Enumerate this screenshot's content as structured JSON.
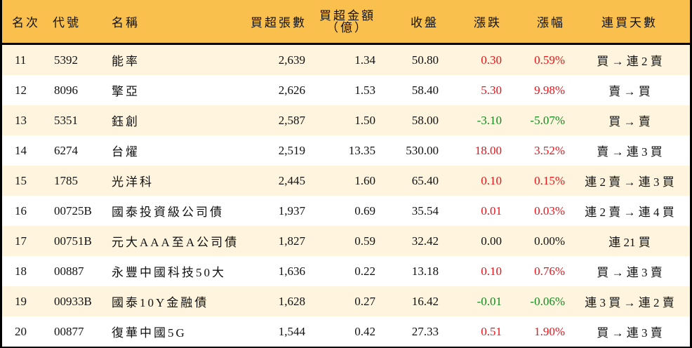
{
  "colors": {
    "header_bg": "#F9C04D",
    "row_alt_bg": "#FFF5DE",
    "row_plain_bg": "#FFFFFF",
    "up": "#E8141A",
    "down": "#12891F",
    "border": "#000000"
  },
  "table": {
    "headers": {
      "rank": "名次",
      "code": "代號",
      "name": "名稱",
      "net_buy_lots": "買超張數",
      "net_buy_amount_line1": "買超金額",
      "net_buy_amount_line2": "（億）",
      "close": "收盤",
      "change": "漲跌",
      "change_pct": "漲幅",
      "streak": "連買天數"
    },
    "rows": [
      {
        "rank": "11",
        "code": "5392",
        "name": "能率",
        "lots": "2,639",
        "amount": "1.34",
        "close": "50.80",
        "change": "0.30",
        "pct": "0.59%",
        "dir": "up",
        "streak": "買 → 連 2 賣"
      },
      {
        "rank": "12",
        "code": "8096",
        "name": "擎亞",
        "lots": "2,626",
        "amount": "1.53",
        "close": "58.40",
        "change": "5.30",
        "pct": "9.98%",
        "dir": "up",
        "streak": "賣 → 買"
      },
      {
        "rank": "13",
        "code": "5351",
        "name": "鈺創",
        "lots": "2,587",
        "amount": "1.50",
        "close": "58.00",
        "change": "-3.10",
        "pct": "-5.07%",
        "dir": "down",
        "streak": "買 → 賣"
      },
      {
        "rank": "14",
        "code": "6274",
        "name": "台燿",
        "lots": "2,519",
        "amount": "13.35",
        "close": "530.00",
        "change": "18.00",
        "pct": "3.52%",
        "dir": "up",
        "streak": "賣 → 連 3 買"
      },
      {
        "rank": "15",
        "code": "1785",
        "name": "光洋科",
        "lots": "2,445",
        "amount": "1.60",
        "close": "65.40",
        "change": "0.10",
        "pct": "0.15%",
        "dir": "up",
        "streak": "連 2 賣 → 連 3 買"
      },
      {
        "rank": "16",
        "code": "00725B",
        "name": "國泰投資級公司債",
        "lots": "1,937",
        "amount": "0.69",
        "close": "35.54",
        "change": "0.01",
        "pct": "0.03%",
        "dir": "up",
        "streak": "連 2 賣 → 連 4 買"
      },
      {
        "rank": "17",
        "code": "00751B",
        "name": "元大AAA至A公司債",
        "lots": "1,827",
        "amount": "0.59",
        "close": "32.42",
        "change": "0.00",
        "pct": "0.00%",
        "dir": "flat",
        "streak": "連 21 買"
      },
      {
        "rank": "18",
        "code": "00887",
        "name": "永豐中國科技50大",
        "lots": "1,636",
        "amount": "0.22",
        "close": "13.18",
        "change": "0.10",
        "pct": "0.76%",
        "dir": "up",
        "streak": "買 → 連 3 賣"
      },
      {
        "rank": "19",
        "code": "00933B",
        "name": "國泰10Y金融債",
        "lots": "1,628",
        "amount": "0.27",
        "close": "16.42",
        "change": "-0.01",
        "pct": "-0.06%",
        "dir": "down",
        "streak": "連 3 買 → 連 2 賣"
      },
      {
        "rank": "20",
        "code": "00877",
        "name": "復華中國5G",
        "lots": "1,544",
        "amount": "0.42",
        "close": "27.33",
        "change": "0.51",
        "pct": "1.90%",
        "dir": "up",
        "streak": "買 → 連 3 賣"
      }
    ]
  }
}
